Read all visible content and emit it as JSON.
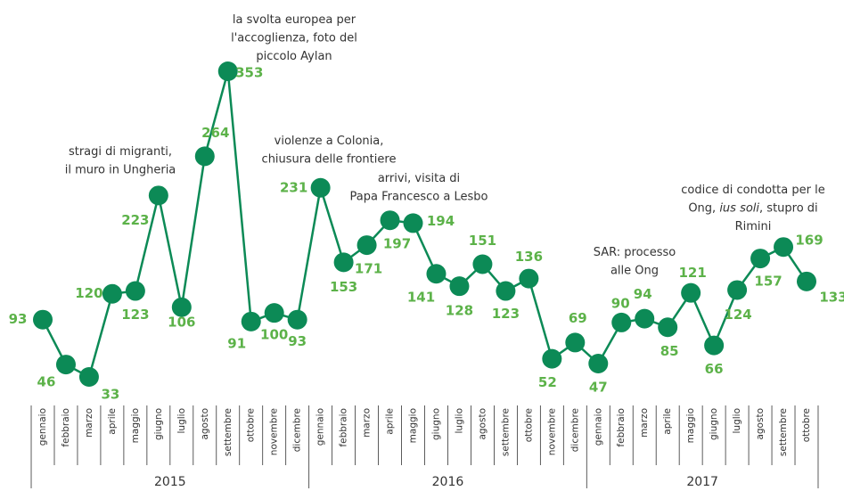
{
  "chart_data": {
    "type": "line",
    "categories": [
      "gennaio",
      "febbraio",
      "marzo",
      "aprile",
      "maggio",
      "giugno",
      "luglio",
      "agosto",
      "settembre",
      "ottobre",
      "novembre",
      "dicembre",
      "gennaio",
      "febbraio",
      "marzo",
      "aprile",
      "maggio",
      "giugno",
      "luglio",
      "agosto",
      "settembre",
      "ottobre",
      "novembre",
      "dicembre",
      "gennaio",
      "febbraio",
      "marzo",
      "aprile",
      "maggio",
      "giugno",
      "luglio",
      "agosto",
      "settembre",
      "ottobre"
    ],
    "years": [
      "2015",
      "2016",
      "2017"
    ],
    "series": [
      {
        "color": "#0c8a56",
        "label_color": "#5cb249",
        "values": [
          93,
          46,
          33,
          120,
          123,
          223,
          106,
          264,
          353,
          91,
          100,
          93,
          231,
          153,
          171,
          197,
          194,
          141,
          128,
          151,
          123,
          136,
          52,
          69,
          47,
          90,
          94,
          85,
          121,
          66,
          124,
          157,
          169,
          133
        ]
      }
    ],
    "annotations": [
      {
        "index": 5,
        "lines": [
          [
            {
              "text": "stragi di migranti,"
            }
          ],
          [
            {
              "text": "il muro in Ungheria"
            }
          ]
        ]
      },
      {
        "index": 8,
        "lines": [
          [
            {
              "text": "la svolta europea per"
            }
          ],
          [
            {
              "text": "l'accoglienza, foto del"
            }
          ],
          [
            {
              "text": "piccolo Aylan"
            }
          ]
        ]
      },
      {
        "index": 12,
        "lines": [
          [
            {
              "text": "violenze a Colonia,"
            }
          ],
          [
            {
              "text": "chiusura delle frontiere"
            }
          ]
        ]
      },
      {
        "index": 15,
        "lines": [
          [
            {
              "text": "arrivi, visita di"
            }
          ],
          [
            {
              "text": "Papa Francesco a Lesbo"
            }
          ]
        ]
      },
      {
        "index": 26,
        "lines": [
          [
            {
              "text": "SAR: processo"
            }
          ],
          [
            {
              "text": "alle Ong"
            }
          ]
        ]
      },
      {
        "index": 32,
        "lines": [
          [
            {
              "text": "codice di condotta per le"
            }
          ],
          [
            {
              "text": "Ong, "
            },
            {
              "text": "ius soli",
              "style": "italic"
            },
            {
              "text": ", stupro di"
            }
          ],
          [
            {
              "text": "Rimini"
            }
          ]
        ]
      }
    ]
  }
}
